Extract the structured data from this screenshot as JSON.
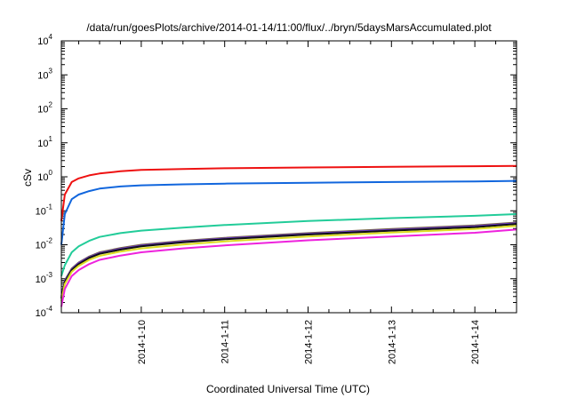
{
  "chart_data": {
    "type": "line",
    "title": "/data/run/goesPlots/archive/2014-01-14/11:00/flux/../bryn/5daysMarsAccumulated.plot",
    "xlabel": "Coordinated Universal Time (UTC)",
    "ylabel": "cSv",
    "y_scale": "log",
    "ylim": [
      0.0001,
      10000
    ],
    "xlim": [
      "2014-01-09 01:00",
      "2014-01-14 12:00"
    ],
    "x_ticks": [
      "2014-1-10",
      "2014-1-11",
      "2014-1-12",
      "2014-1-13",
      "2014-1-14"
    ],
    "y_ticks": [
      {
        "base": "10",
        "exp": "-4",
        "value": 0.0001
      },
      {
        "base": "10",
        "exp": "-3",
        "value": 0.001
      },
      {
        "base": "10",
        "exp": "-2",
        "value": 0.01
      },
      {
        "base": "10",
        "exp": "-1",
        "value": 0.1
      },
      {
        "base": "10",
        "exp": "0",
        "value": 1
      },
      {
        "base": "10",
        "exp": "1",
        "value": 10
      },
      {
        "base": "10",
        "exp": "2",
        "value": 100
      },
      {
        "base": "10",
        "exp": "3",
        "value": 1000
      },
      {
        "base": "10",
        "exp": "4",
        "value": 10000
      }
    ],
    "grid": false,
    "legend": "none",
    "series": [
      {
        "color": "#ee1111",
        "x": [
          "2014-01-09 01:00",
          "2014-01-09 02:00",
          "2014-01-09 04:00",
          "2014-01-09 06:00",
          "2014-01-09 09:00",
          "2014-01-09 12:00",
          "2014-01-09 18:00",
          "2014-01-10 00:00",
          "2014-01-10 12:00",
          "2014-01-11 00:00",
          "2014-01-12 00:00",
          "2014-01-13 00:00",
          "2014-01-14 00:00",
          "2014-01-14 12:00"
        ],
        "y": [
          0.05,
          0.3,
          0.7,
          0.9,
          1.1,
          1.25,
          1.45,
          1.6,
          1.7,
          1.78,
          1.88,
          1.97,
          2.05,
          2.1
        ]
      },
      {
        "color": "#1166dd",
        "x": [
          "2014-01-09 01:00",
          "2014-01-09 02:00",
          "2014-01-09 04:00",
          "2014-01-09 06:00",
          "2014-01-09 09:00",
          "2014-01-09 12:00",
          "2014-01-09 18:00",
          "2014-01-10 00:00",
          "2014-01-10 12:00",
          "2014-01-11 00:00",
          "2014-01-12 00:00",
          "2014-01-13 00:00",
          "2014-01-14 00:00",
          "2014-01-14 12:00"
        ],
        "y": [
          0.01,
          0.08,
          0.22,
          0.3,
          0.38,
          0.45,
          0.52,
          0.56,
          0.6,
          0.63,
          0.67,
          0.7,
          0.73,
          0.76
        ]
      },
      {
        "color": "#22cc99",
        "x": [
          "2014-01-09 01:00",
          "2014-01-09 02:00",
          "2014-01-09 04:00",
          "2014-01-09 06:00",
          "2014-01-09 09:00",
          "2014-01-09 12:00",
          "2014-01-09 18:00",
          "2014-01-10 00:00",
          "2014-01-10 12:00",
          "2014-01-11 00:00",
          "2014-01-12 00:00",
          "2014-01-13 00:00",
          "2014-01-14 00:00",
          "2014-01-14 12:00"
        ],
        "y": [
          0.0012,
          0.0025,
          0.006,
          0.009,
          0.013,
          0.017,
          0.022,
          0.026,
          0.032,
          0.038,
          0.05,
          0.061,
          0.071,
          0.08
        ]
      },
      {
        "color": "#776644",
        "x": [
          "2014-01-09 01:00",
          "2014-01-09 02:00",
          "2014-01-09 04:00",
          "2014-01-09 06:00",
          "2014-01-09 09:00",
          "2014-01-09 12:00",
          "2014-01-09 18:00",
          "2014-01-10 00:00",
          "2014-01-10 12:00",
          "2014-01-11 00:00",
          "2014-01-12 00:00",
          "2014-01-13 00:00",
          "2014-01-14 00:00",
          "2014-01-14 12:00"
        ],
        "y": [
          0.0003,
          0.0009,
          0.002,
          0.003,
          0.0045,
          0.006,
          0.008,
          0.01,
          0.013,
          0.016,
          0.022,
          0.029,
          0.037,
          0.045
        ]
      },
      {
        "color": "#6633cc",
        "x": [
          "2014-01-09 01:00",
          "2014-01-09 02:00",
          "2014-01-09 04:00",
          "2014-01-09 06:00",
          "2014-01-09 09:00",
          "2014-01-09 12:00",
          "2014-01-09 18:00",
          "2014-01-10 00:00",
          "2014-01-10 12:00",
          "2014-01-11 00:00",
          "2014-01-12 00:00",
          "2014-01-13 00:00",
          "2014-01-14 00:00",
          "2014-01-14 12:00"
        ],
        "y": [
          0.00028,
          0.00085,
          0.0019,
          0.0029,
          0.0043,
          0.0057,
          0.0076,
          0.0095,
          0.0124,
          0.0152,
          0.021,
          0.0275,
          0.035,
          0.043
        ]
      },
      {
        "color": "#111111",
        "x": [
          "2014-01-09 01:00",
          "2014-01-09 02:00",
          "2014-01-09 04:00",
          "2014-01-09 06:00",
          "2014-01-09 09:00",
          "2014-01-09 12:00",
          "2014-01-09 18:00",
          "2014-01-10 00:00",
          "2014-01-10 12:00",
          "2014-01-11 00:00",
          "2014-01-12 00:00",
          "2014-01-13 00:00",
          "2014-01-14 00:00",
          "2014-01-14 12:00"
        ],
        "y": [
          0.00026,
          0.0008,
          0.0018,
          0.0027,
          0.0041,
          0.0054,
          0.0072,
          0.009,
          0.0118,
          0.0145,
          0.02,
          0.026,
          0.033,
          0.041
        ]
      },
      {
        "color": "#dddd22",
        "x": [
          "2014-01-09 01:00",
          "2014-01-09 02:00",
          "2014-01-09 04:00",
          "2014-01-09 06:00",
          "2014-01-09 09:00",
          "2014-01-09 12:00",
          "2014-01-09 18:00",
          "2014-01-10 00:00",
          "2014-01-10 12:00",
          "2014-01-11 00:00",
          "2014-01-12 00:00",
          "2014-01-13 00:00",
          "2014-01-14 00:00",
          "2014-01-14 12:00"
        ],
        "y": [
          0.00022,
          0.0007,
          0.0016,
          0.0024,
          0.0036,
          0.0047,
          0.0063,
          0.0078,
          0.0102,
          0.0126,
          0.0175,
          0.0228,
          0.029,
          0.036
        ]
      },
      {
        "color": "#ee22dd",
        "x": [
          "2014-01-09 01:00",
          "2014-01-09 02:00",
          "2014-01-09 04:00",
          "2014-01-09 06:00",
          "2014-01-09 09:00",
          "2014-01-09 12:00",
          "2014-01-09 18:00",
          "2014-01-10 00:00",
          "2014-01-10 12:00",
          "2014-01-11 00:00",
          "2014-01-12 00:00",
          "2014-01-13 00:00",
          "2014-01-14 00:00",
          "2014-01-14 12:00"
        ],
        "y": [
          0.00015,
          0.0005,
          0.0012,
          0.0018,
          0.0027,
          0.0036,
          0.0048,
          0.006,
          0.0078,
          0.0096,
          0.0135,
          0.0175,
          0.0225,
          0.028
        ]
      }
    ]
  }
}
